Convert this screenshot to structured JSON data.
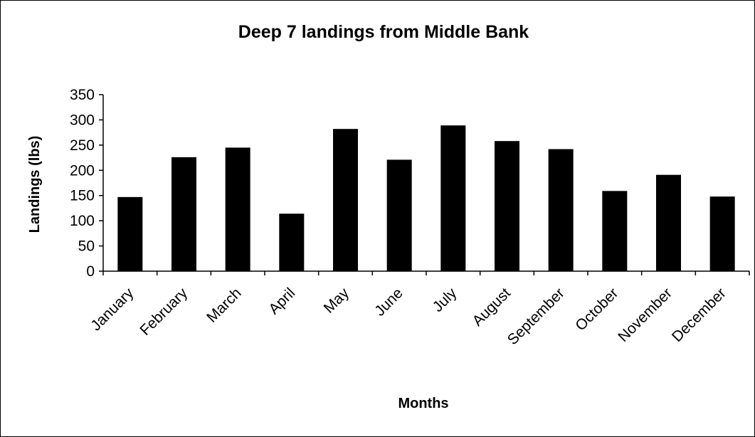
{
  "chart_data": {
    "type": "bar",
    "title": "Deep 7 landings from Middle Bank",
    "xlabel": "Months",
    "ylabel": "Landings (lbs)",
    "categories": [
      "January",
      "February",
      "March",
      "April",
      "May",
      "June",
      "July",
      "August",
      "September",
      "October",
      "November",
      "December"
    ],
    "values": [
      147,
      226,
      245,
      114,
      282,
      221,
      289,
      258,
      242,
      159,
      191,
      148
    ],
    "ylim": [
      0,
      350
    ],
    "yticks": [
      "0",
      "50",
      "100",
      "150",
      "200",
      "250",
      "300",
      "350"
    ],
    "grid": false,
    "legend": "none",
    "bar_color": "#000000"
  }
}
